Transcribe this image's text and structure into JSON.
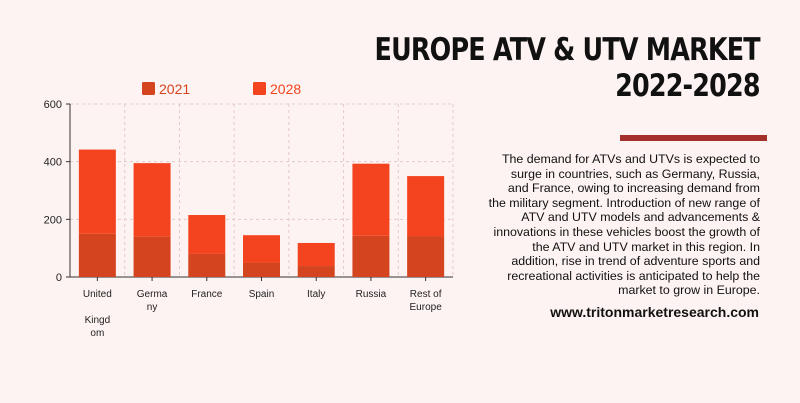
{
  "header": {
    "title_line1": "EUROPE ATV & UTV MARKET",
    "title_line2": "2022-2028"
  },
  "description": "The demand for ATVs and UTVs is expected to surge in countries, such as Germany, Russia, and France, owing to increasing demand from the military segment. Introduction of new range of ATV and UTV models and advancements & innovations in these vehicles boost the growth of the ATV and UTV market in this region. In addition, rise in trend of adventure sports and recreational activities is anticipated to help the market to grow in Europe.",
  "website": "www.tritonmarketresearch.com",
  "colors": {
    "background": "#fdf3f2",
    "series_2021": "#d4441f",
    "series_2028": "#f4441f",
    "accent": "#a3302a",
    "grid": "#e5c9c9"
  },
  "chart_data": {
    "type": "bar",
    "stacked": true,
    "categories": [
      "United Kingdom",
      "Germany",
      "France",
      "Spain",
      "Italy",
      "Russia",
      "Rest of Europe"
    ],
    "category_labels": [
      [
        "United",
        "",
        "Kingd",
        "om"
      ],
      [
        "Germa",
        "ny"
      ],
      [
        "France"
      ],
      [
        "Spain"
      ],
      [
        "Italy"
      ],
      [
        "Russia"
      ],
      [
        "Rest of",
        "Europe"
      ]
    ],
    "series": [
      {
        "name": "2021",
        "values": [
          150,
          140,
          80,
          50,
          38,
          143,
          142
        ]
      },
      {
        "name": "2028",
        "values": [
          292,
          255,
          135,
          95,
          80,
          250,
          208
        ]
      }
    ],
    "ylim": [
      0,
      600
    ],
    "yticks": [
      0,
      200,
      400,
      600
    ],
    "grid": true,
    "legend_position": "top"
  }
}
